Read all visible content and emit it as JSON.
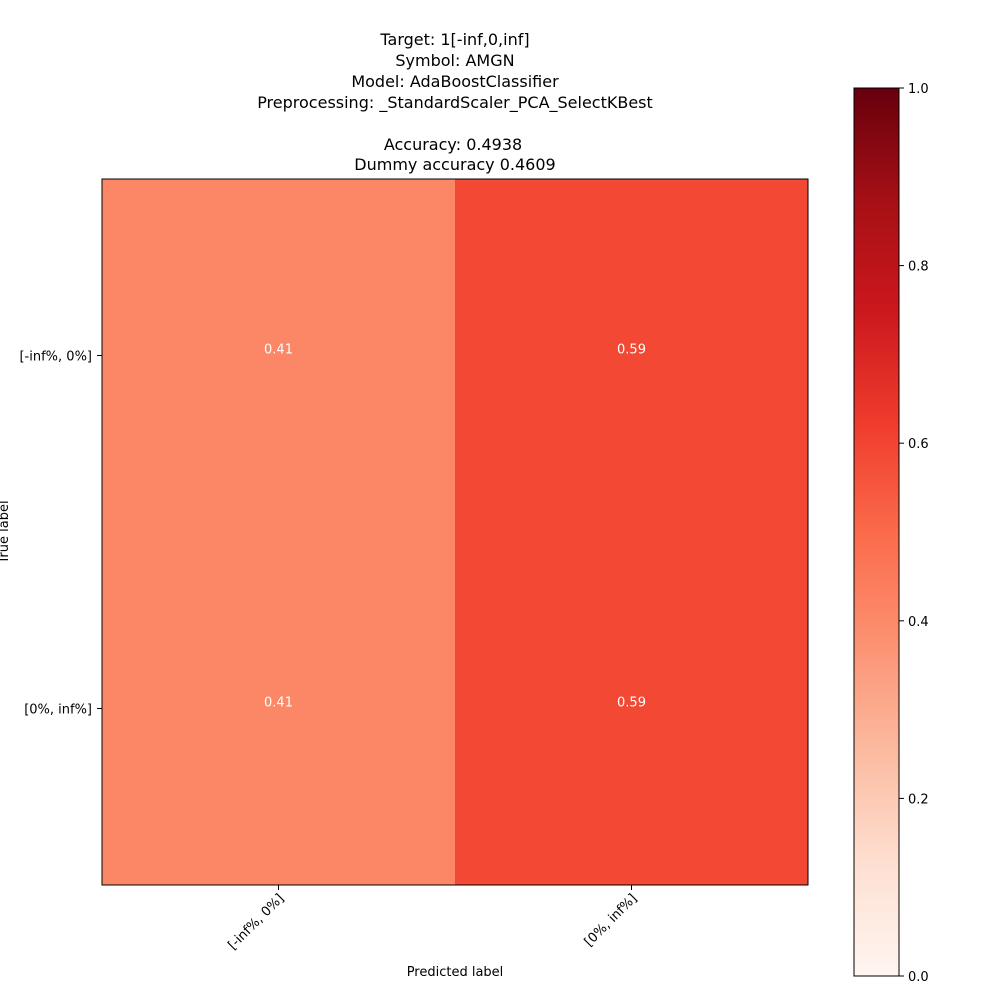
{
  "chart_data": {
    "type": "heatmap",
    "title_lines": [
      "Target: 1[-inf,0,inf]",
      "Symbol: AMGN",
      "Model: AdaBoostClassifier",
      "Preprocessing: _StandardScaler_PCA_SelectKBest",
      "",
      "Accuracy: 0.4938",
      "Dummy accuracy 0.4609"
    ],
    "xlabel": "Predicted label",
    "ylabel": "True label",
    "x_categories": [
      "[-inf%, 0%]",
      "[0%, inf%]"
    ],
    "y_categories": [
      "[-inf%, 0%]",
      "[0%, inf%]"
    ],
    "values": [
      [
        0.41,
        0.59
      ],
      [
        0.41,
        0.59
      ]
    ],
    "value_labels": [
      [
        "0.41",
        "0.59"
      ],
      [
        "0.41",
        "0.59"
      ]
    ],
    "colormap": "Reds",
    "color_range": [
      0.0,
      1.0
    ],
    "colorbar_ticks": [
      "0.0",
      "0.2",
      "0.4",
      "0.6",
      "0.8",
      "1.0"
    ],
    "colorbar_tick_values": [
      0.0,
      0.2,
      0.4,
      0.6,
      0.8,
      1.0
    ],
    "grid": false
  }
}
